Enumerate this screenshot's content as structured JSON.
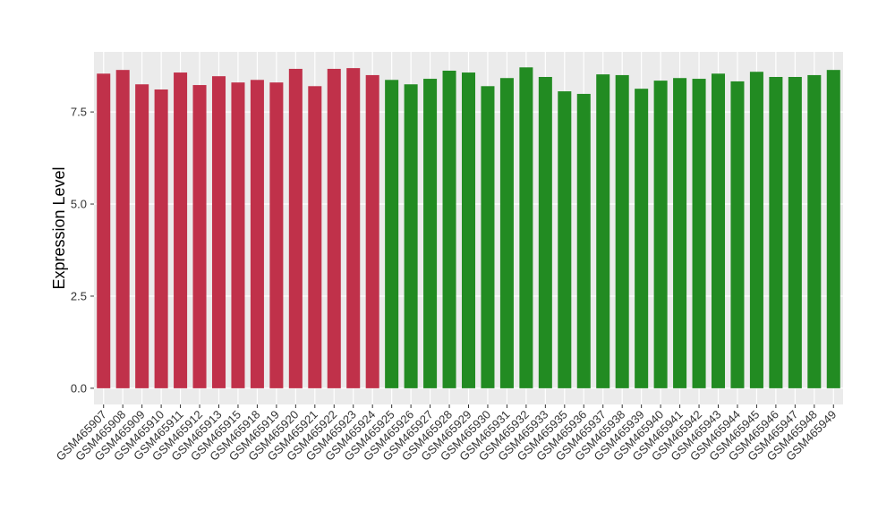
{
  "chart_data": {
    "type": "bar",
    "y_label": "Expression Level",
    "categories": [
      "GSM465907",
      "GSM465908",
      "GSM465909",
      "GSM465910",
      "GSM465911",
      "GSM465912",
      "GSM465913",
      "GSM465915",
      "GSM465918",
      "GSM465919",
      "GSM465920",
      "GSM465921",
      "GSM465922",
      "GSM465923",
      "GSM465924",
      "GSM465925",
      "GSM465926",
      "GSM465927",
      "GSM465928",
      "GSM465929",
      "GSM465930",
      "GSM465931",
      "GSM465932",
      "GSM465933",
      "GSM465935",
      "GSM465936",
      "GSM465937",
      "GSM465938",
      "GSM465939",
      "GSM465940",
      "GSM465941",
      "GSM465942",
      "GSM465943",
      "GSM465944",
      "GSM465945",
      "GSM465946",
      "GSM465947",
      "GSM465948",
      "GSM465949"
    ],
    "values": [
      8.54,
      8.64,
      8.25,
      8.11,
      8.57,
      8.23,
      8.47,
      8.3,
      8.37,
      8.3,
      8.67,
      8.2,
      8.67,
      8.69,
      8.5,
      8.37,
      8.25,
      8.4,
      8.62,
      8.57,
      8.2,
      8.42,
      8.71,
      8.45,
      8.06,
      7.99,
      8.52,
      8.5,
      8.13,
      8.35,
      8.42,
      8.4,
      8.54,
      8.33,
      8.59,
      8.45,
      8.45,
      8.5,
      8.64
    ],
    "colors": [
      "#c0314a",
      "#c0314a",
      "#c0314a",
      "#c0314a",
      "#c0314a",
      "#c0314a",
      "#c0314a",
      "#c0314a",
      "#c0314a",
      "#c0314a",
      "#c0314a",
      "#c0314a",
      "#c0314a",
      "#c0314a",
      "#c0314a",
      "#228b22",
      "#228b22",
      "#228b22",
      "#228b22",
      "#228b22",
      "#228b22",
      "#228b22",
      "#228b22",
      "#228b22",
      "#228b22",
      "#228b22",
      "#228b22",
      "#228b22",
      "#228b22",
      "#228b22",
      "#228b22",
      "#228b22",
      "#228b22",
      "#228b22",
      "#228b22",
      "#228b22",
      "#228b22",
      "#228b22",
      "#228b22"
    ],
    "ylim": [
      -0.44,
      9.13
    ],
    "yticks": [
      {
        "value": 0,
        "label": "0.0"
      },
      2.5,
      {
        "value": 5,
        "label": "5.0"
      },
      7.5
    ],
    "grid": true
  }
}
